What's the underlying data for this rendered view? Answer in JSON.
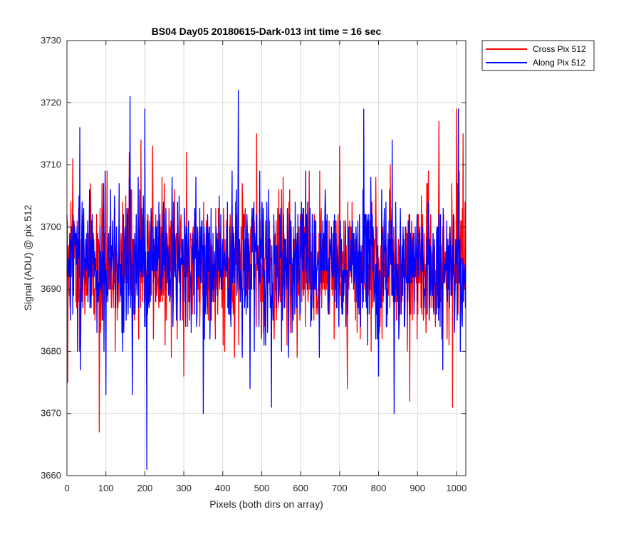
{
  "chart_data": {
    "type": "line",
    "title": "BS04 Day05 20180615-Dark-013 int time = 16 sec",
    "xlabel": "Pixels (both dirs on array)",
    "ylabel": "Signal (ADU) @ pix 512",
    "xlim": [
      0,
      1024
    ],
    "ylim": [
      3660,
      3730
    ],
    "xticks": [
      0,
      100,
      200,
      300,
      400,
      500,
      600,
      700,
      800,
      900,
      1000
    ],
    "yticks": [
      3660,
      3670,
      3680,
      3690,
      3700,
      3710,
      3720,
      3730
    ],
    "grid": true,
    "legend_position": "outside-top-right",
    "noise_note": "Dense noise trace, 1024 points per series; values estimated around mean ~3694 ADU with visible extremes",
    "series": [
      {
        "name": "Cross Pix 512",
        "color": "#ff0000",
        "mean": 3694,
        "spread": 5.5,
        "seed": 11,
        "extremes": [
          {
            "x": 2,
            "y": 3675
          },
          {
            "x": 10,
            "y": 3704
          },
          {
            "x": 15,
            "y": 3711
          },
          {
            "x": 83,
            "y": 3667
          },
          {
            "x": 160,
            "y": 3712
          },
          {
            "x": 190,
            "y": 3714
          },
          {
            "x": 220,
            "y": 3713
          },
          {
            "x": 307,
            "y": 3712
          },
          {
            "x": 300,
            "y": 3676
          },
          {
            "x": 487,
            "y": 3715
          },
          {
            "x": 700,
            "y": 3713
          },
          {
            "x": 720,
            "y": 3674
          },
          {
            "x": 830,
            "y": 3710
          },
          {
            "x": 880,
            "y": 3672
          },
          {
            "x": 910,
            "y": 3705
          },
          {
            "x": 955,
            "y": 3717
          },
          {
            "x": 990,
            "y": 3671
          },
          {
            "x": 1000,
            "y": 3719
          },
          {
            "x": 1017,
            "y": 3715
          }
        ]
      },
      {
        "name": "Along Pix 512",
        "color": "#0000ff",
        "mean": 3694,
        "spread": 5.5,
        "seed": 29,
        "extremes": [
          {
            "x": 33,
            "y": 3716
          },
          {
            "x": 35,
            "y": 3677
          },
          {
            "x": 100,
            "y": 3673
          },
          {
            "x": 162,
            "y": 3721
          },
          {
            "x": 168,
            "y": 3673
          },
          {
            "x": 200,
            "y": 3719
          },
          {
            "x": 205,
            "y": 3661
          },
          {
            "x": 350,
            "y": 3670
          },
          {
            "x": 440,
            "y": 3722
          },
          {
            "x": 470,
            "y": 3674
          },
          {
            "x": 525,
            "y": 3671
          },
          {
            "x": 762,
            "y": 3719
          },
          {
            "x": 800,
            "y": 3676
          },
          {
            "x": 835,
            "y": 3714
          },
          {
            "x": 840,
            "y": 3670
          },
          {
            "x": 965,
            "y": 3677
          },
          {
            "x": 1005,
            "y": 3719
          },
          {
            "x": 1010,
            "y": 3680
          }
        ]
      }
    ]
  }
}
